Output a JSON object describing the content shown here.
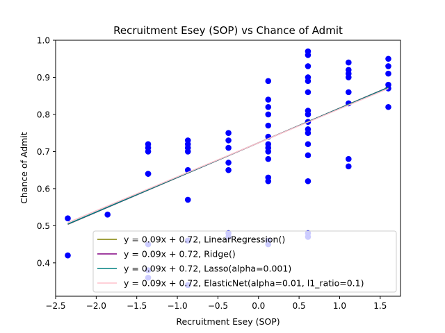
{
  "chart_data": {
    "type": "scatter",
    "title": "Recruitment Esey (SOP) vs Chance of Admit",
    "xlabel": "Recruitment Esey (SOP)",
    "ylabel": "Chance of Admit",
    "xlim": [
      -2.5,
      1.75
    ],
    "ylim": [
      0.31,
      1.0
    ],
    "xticks": [
      -2.5,
      -2.0,
      -1.5,
      -1.0,
      -0.5,
      0.0,
      0.5,
      1.0,
      1.5
    ],
    "xtick_labels": [
      "−2.5",
      "−2.0",
      "−1.5",
      "−1.0",
      "−0.5",
      "0.0",
      "0.5",
      "1.0",
      "1.5"
    ],
    "yticks": [
      0.4,
      0.5,
      0.6,
      0.7,
      0.8,
      0.9,
      1.0
    ],
    "ytick_labels": [
      "0.4",
      "0.5",
      "0.6",
      "0.7",
      "0.8",
      "0.9",
      "1.0"
    ],
    "grid": false,
    "legend_position": "lower-right",
    "scatter_color": "#0000ff",
    "points": [
      [
        -2.35,
        0.52
      ],
      [
        -2.35,
        0.42
      ],
      [
        -1.86,
        0.53
      ],
      [
        -1.36,
        0.72
      ],
      [
        -1.36,
        0.71
      ],
      [
        -1.36,
        0.7
      ],
      [
        -1.36,
        0.64
      ],
      [
        -1.36,
        0.64
      ],
      [
        -1.36,
        0.45
      ],
      [
        -1.36,
        0.38
      ],
      [
        -1.36,
        0.36
      ],
      [
        -0.87,
        0.73
      ],
      [
        -0.87,
        0.72
      ],
      [
        -0.87,
        0.71
      ],
      [
        -0.87,
        0.7
      ],
      [
        -0.87,
        0.65
      ],
      [
        -0.87,
        0.57
      ],
      [
        -0.87,
        0.46
      ],
      [
        -0.87,
        0.34
      ],
      [
        -0.37,
        0.75
      ],
      [
        -0.37,
        0.73
      ],
      [
        -0.37,
        0.71
      ],
      [
        -0.37,
        0.67
      ],
      [
        -0.37,
        0.65
      ],
      [
        -0.37,
        0.48
      ],
      [
        -0.37,
        0.47
      ],
      [
        0.12,
        0.89
      ],
      [
        0.12,
        0.84
      ],
      [
        0.12,
        0.82
      ],
      [
        0.12,
        0.8
      ],
      [
        0.12,
        0.77
      ],
      [
        0.12,
        0.74
      ],
      [
        0.12,
        0.72
      ],
      [
        0.12,
        0.71
      ],
      [
        0.12,
        0.7
      ],
      [
        0.12,
        0.68
      ],
      [
        0.12,
        0.63
      ],
      [
        0.12,
        0.62
      ],
      [
        0.12,
        0.46
      ],
      [
        0.12,
        0.45
      ],
      [
        0.61,
        0.97
      ],
      [
        0.61,
        0.96
      ],
      [
        0.61,
        0.93
      ],
      [
        0.61,
        0.9
      ],
      [
        0.61,
        0.89
      ],
      [
        0.61,
        0.86
      ],
      [
        0.61,
        0.81
      ],
      [
        0.61,
        0.8
      ],
      [
        0.61,
        0.78
      ],
      [
        0.61,
        0.76
      ],
      [
        0.61,
        0.75
      ],
      [
        0.61,
        0.72
      ],
      [
        0.61,
        0.69
      ],
      [
        0.61,
        0.62
      ],
      [
        0.61,
        0.48
      ],
      [
        0.61,
        0.47
      ],
      [
        1.11,
        0.94
      ],
      [
        1.11,
        0.92
      ],
      [
        1.11,
        0.91
      ],
      [
        1.11,
        0.9
      ],
      [
        1.11,
        0.86
      ],
      [
        1.11,
        0.83
      ],
      [
        1.11,
        0.68
      ],
      [
        1.11,
        0.66
      ],
      [
        1.6,
        0.95
      ],
      [
        1.6,
        0.93
      ],
      [
        1.6,
        0.91
      ],
      [
        1.6,
        0.88
      ],
      [
        1.6,
        0.87
      ],
      [
        1.6,
        0.82
      ]
    ],
    "series": [
      {
        "name": "y = 0.09x + 0.72, LinearRegression()",
        "color": "#808000",
        "slope": 0.0935,
        "intercept": 0.7235,
        "x": [
          -2.35,
          1.6
        ]
      },
      {
        "name": "y = 0.09x + 0.72, Ridge()",
        "color": "#800080",
        "slope": 0.0934,
        "intercept": 0.7235,
        "x": [
          -2.35,
          1.6
        ]
      },
      {
        "name": "y = 0.09x + 0.72, Lasso(alpha=0.001)",
        "color": "#008080",
        "slope": 0.0932,
        "intercept": 0.7235,
        "x": [
          -2.35,
          1.6
        ]
      },
      {
        "name": "y = 0.09x + 0.72, ElasticNet(alpha=0.01, l1_ratio=0.1)",
        "color": "#ffc0cb",
        "slope": 0.0915,
        "intercept": 0.7235,
        "x": [
          -2.35,
          1.6
        ]
      }
    ]
  }
}
